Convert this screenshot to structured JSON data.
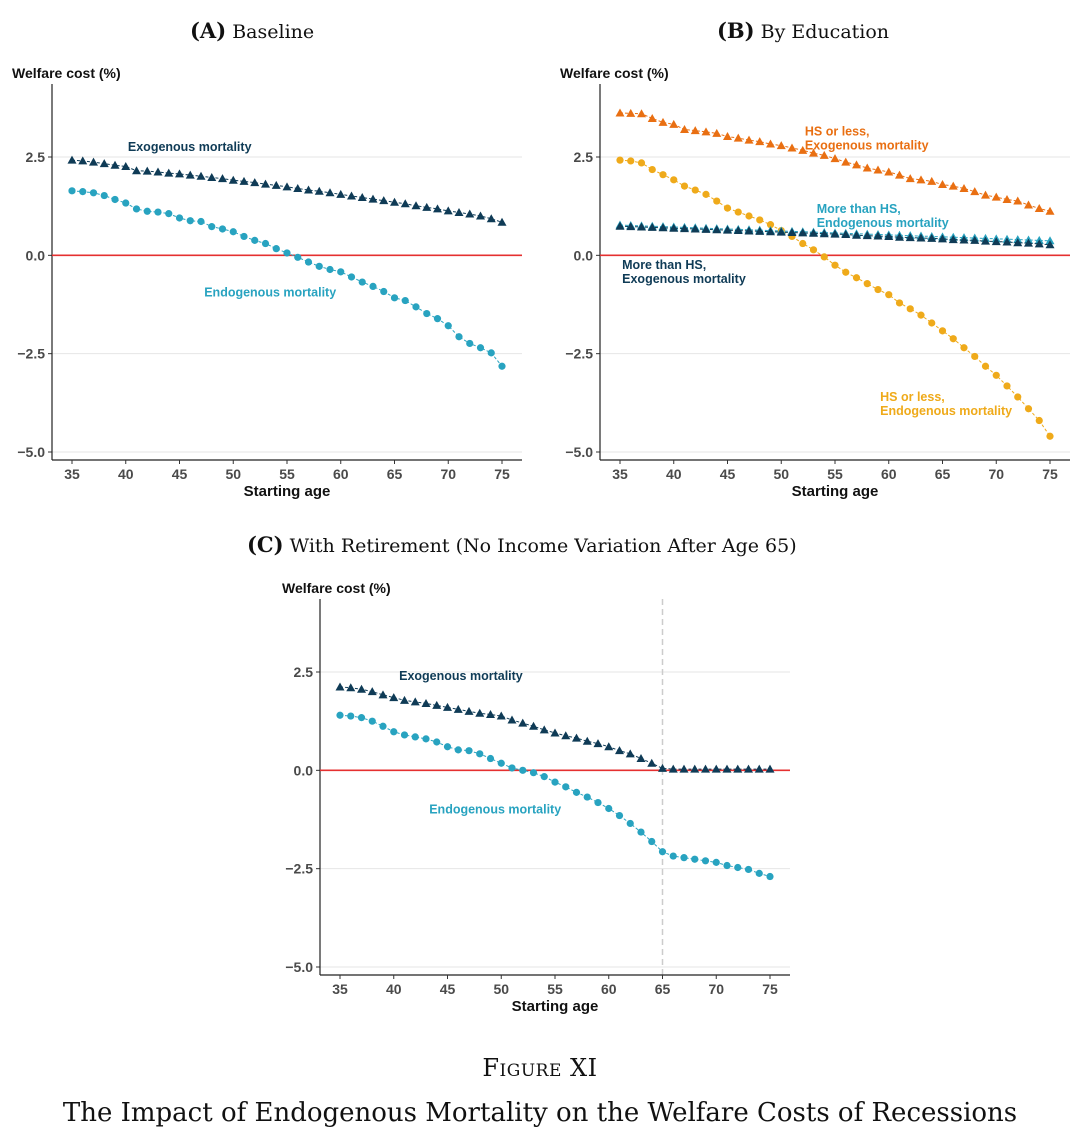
{
  "figure": {
    "number": "Figure XI",
    "caption": "The Impact of Endogenous Mortality on the Welfare Costs of Recessions"
  },
  "colors": {
    "exogenous": "#0f3b56",
    "endogenous": "#28a3c0",
    "hs_exogenous": "#e96f12",
    "hs_endogenous": "#efaa1a",
    "zero_line": "#e53030",
    "grid": "#e6e6e6",
    "retirement_line": "#cccccc"
  },
  "chart_data": [
    {
      "id": "A",
      "type": "scatter",
      "panel_letter": "(A)",
      "panel_title": "Baseline",
      "ylabel": "Welfare cost (%)",
      "xlabel": "Starting age",
      "xlim": [
        35,
        75
      ],
      "ylim": [
        -5,
        4.5
      ],
      "xticks": [
        "35",
        "40",
        "45",
        "50",
        "55",
        "60",
        "65",
        "70",
        "75"
      ],
      "yticks": [
        "2.5",
        "0.0",
        "−2.5",
        "−5.0"
      ],
      "grid": true,
      "x": [
        35,
        36,
        37,
        38,
        39,
        40,
        41,
        42,
        43,
        44,
        45,
        46,
        47,
        48,
        49,
        50,
        51,
        52,
        53,
        54,
        55,
        56,
        57,
        58,
        59,
        60,
        61,
        62,
        63,
        64,
        65,
        66,
        67,
        68,
        69,
        70,
        71,
        72,
        73,
        74,
        75
      ],
      "series": [
        {
          "name": "Exogenous mortality",
          "marker": "triangle",
          "values": [
            2.42,
            2.4,
            2.37,
            2.33,
            2.29,
            2.26,
            2.15,
            2.14,
            2.12,
            2.09,
            2.07,
            2.04,
            2.01,
            1.98,
            1.95,
            1.91,
            1.88,
            1.85,
            1.81,
            1.78,
            1.74,
            1.7,
            1.66,
            1.63,
            1.59,
            1.55,
            1.51,
            1.47,
            1.43,
            1.39,
            1.35,
            1.31,
            1.26,
            1.22,
            1.18,
            1.13,
            1.09,
            1.05,
            1.0,
            0.93,
            0.84
          ]
        },
        {
          "name": "Endogenous mortality",
          "marker": "circle",
          "values": [
            1.64,
            1.62,
            1.59,
            1.52,
            1.42,
            1.33,
            1.18,
            1.12,
            1.1,
            1.06,
            0.95,
            0.88,
            0.86,
            0.73,
            0.67,
            0.6,
            0.48,
            0.38,
            0.3,
            0.17,
            0.06,
            -0.05,
            -0.17,
            -0.28,
            -0.36,
            -0.42,
            -0.55,
            -0.68,
            -0.79,
            -0.92,
            -1.08,
            -1.15,
            -1.31,
            -1.48,
            -1.61,
            -1.79,
            -2.07,
            -2.24,
            -2.35,
            -2.48,
            -2.82
          ]
        }
      ]
    },
    {
      "id": "B",
      "type": "scatter",
      "panel_letter": "(B)",
      "panel_title": "By Education",
      "ylabel": "Welfare cost (%)",
      "xlabel": "Starting age",
      "xlim": [
        35,
        75
      ],
      "ylim": [
        -5,
        4.5
      ],
      "xticks": [
        "35",
        "40",
        "45",
        "50",
        "55",
        "60",
        "65",
        "70",
        "75"
      ],
      "yticks": [
        "2.5",
        "0.0",
        "−2.5",
        "−5.0"
      ],
      "grid": true,
      "x": [
        35,
        36,
        37,
        38,
        39,
        40,
        41,
        42,
        43,
        44,
        45,
        46,
        47,
        48,
        49,
        50,
        51,
        52,
        53,
        54,
        55,
        56,
        57,
        58,
        59,
        60,
        61,
        62,
        63,
        64,
        65,
        66,
        67,
        68,
        69,
        70,
        71,
        72,
        73,
        74,
        75
      ],
      "series": [
        {
          "name": "HS or less, Exogenous mortality",
          "marker": "triangle",
          "values": [
            3.62,
            3.61,
            3.6,
            3.48,
            3.38,
            3.33,
            3.2,
            3.17,
            3.14,
            3.1,
            3.02,
            2.98,
            2.93,
            2.89,
            2.83,
            2.79,
            2.73,
            2.67,
            2.6,
            2.54,
            2.46,
            2.37,
            2.3,
            2.22,
            2.17,
            2.12,
            2.04,
            1.95,
            1.92,
            1.88,
            1.8,
            1.76,
            1.7,
            1.62,
            1.53,
            1.48,
            1.42,
            1.38,
            1.28,
            1.19,
            1.12
          ]
        },
        {
          "name": "HS or less, Endogenous mortality",
          "marker": "circle",
          "values": [
            2.42,
            2.4,
            2.35,
            2.18,
            2.05,
            1.92,
            1.76,
            1.66,
            1.55,
            1.38,
            1.2,
            1.1,
            1.0,
            0.9,
            0.78,
            0.63,
            0.48,
            0.3,
            0.14,
            -0.04,
            -0.25,
            -0.43,
            -0.57,
            -0.72,
            -0.87,
            -1.0,
            -1.21,
            -1.36,
            -1.52,
            -1.72,
            -1.92,
            -2.12,
            -2.35,
            -2.57,
            -2.82,
            -3.05,
            -3.32,
            -3.6,
            -3.9,
            -4.2,
            -4.6
          ]
        },
        {
          "name": "More than HS, Endogenous mortality",
          "marker": "triangle",
          "values": [
            0.77,
            0.76,
            0.75,
            0.74,
            0.73,
            0.72,
            0.71,
            0.7,
            0.69,
            0.68,
            0.67,
            0.66,
            0.65,
            0.64,
            0.63,
            0.62,
            0.61,
            0.6,
            0.59,
            0.58,
            0.57,
            0.56,
            0.55,
            0.54,
            0.53,
            0.52,
            0.51,
            0.5,
            0.49,
            0.48,
            0.47,
            0.46,
            0.45,
            0.44,
            0.43,
            0.42,
            0.41,
            0.4,
            0.39,
            0.38,
            0.37
          ]
        },
        {
          "name": "More than HS, Exogenous mortality",
          "marker": "triangle",
          "values": [
            0.74,
            0.73,
            0.72,
            0.71,
            0.7,
            0.69,
            0.68,
            0.67,
            0.66,
            0.65,
            0.64,
            0.63,
            0.62,
            0.61,
            0.6,
            0.59,
            0.58,
            0.57,
            0.56,
            0.55,
            0.54,
            0.53,
            0.51,
            0.5,
            0.49,
            0.48,
            0.46,
            0.45,
            0.44,
            0.43,
            0.42,
            0.4,
            0.39,
            0.38,
            0.36,
            0.35,
            0.34,
            0.32,
            0.31,
            0.29,
            0.27
          ]
        }
      ]
    },
    {
      "id": "C",
      "type": "scatter",
      "panel_letter": "(C)",
      "panel_title": "With Retirement (No Income Variation After Age 65)",
      "ylabel": "Welfare cost (%)",
      "xlabel": "Starting age",
      "xlim": [
        35,
        75
      ],
      "ylim": [
        -5,
        4.5
      ],
      "xticks": [
        "35",
        "40",
        "45",
        "50",
        "55",
        "60",
        "65",
        "70",
        "75"
      ],
      "yticks": [
        "2.5",
        "0.0",
        "−2.5",
        "−5.0"
      ],
      "grid": true,
      "vline": 65,
      "x": [
        35,
        36,
        37,
        38,
        39,
        40,
        41,
        42,
        43,
        44,
        45,
        46,
        47,
        48,
        49,
        50,
        51,
        52,
        53,
        54,
        55,
        56,
        57,
        58,
        59,
        60,
        61,
        62,
        63,
        64,
        65,
        66,
        67,
        68,
        69,
        70,
        71,
        72,
        73,
        74,
        75
      ],
      "series": [
        {
          "name": "Exogenous mortality",
          "marker": "triangle",
          "values": [
            2.12,
            2.1,
            2.06,
            2.0,
            1.92,
            1.85,
            1.78,
            1.74,
            1.7,
            1.65,
            1.6,
            1.55,
            1.5,
            1.45,
            1.42,
            1.38,
            1.28,
            1.2,
            1.12,
            1.03,
            0.95,
            0.88,
            0.82,
            0.74,
            0.68,
            0.6,
            0.5,
            0.42,
            0.3,
            0.18,
            0.05,
            0.03,
            0.03,
            0.03,
            0.03,
            0.03,
            0.03,
            0.03,
            0.03,
            0.03,
            0.03
          ]
        },
        {
          "name": "Endogenous mortality",
          "marker": "circle",
          "values": [
            1.4,
            1.38,
            1.34,
            1.25,
            1.12,
            0.98,
            0.9,
            0.85,
            0.8,
            0.72,
            0.6,
            0.52,
            0.5,
            0.42,
            0.3,
            0.18,
            0.06,
            0.0,
            -0.06,
            -0.16,
            -0.3,
            -0.42,
            -0.56,
            -0.68,
            -0.82,
            -0.97,
            -1.15,
            -1.35,
            -1.57,
            -1.81,
            -2.07,
            -2.18,
            -2.22,
            -2.26,
            -2.3,
            -2.34,
            -2.42,
            -2.47,
            -2.52,
            -2.62,
            -2.7
          ]
        }
      ]
    }
  ],
  "annotations": {
    "A": [
      {
        "text": "Exogenous mortality",
        "color": "exogenous",
        "x": 40.2,
        "y": 2.65
      },
      {
        "text": "Endogenous mortality",
        "color": "endogenous",
        "x": 47.3,
        "y": -1.05
      }
    ],
    "B": [
      {
        "text": "HS or less,",
        "text2": "Exogenous mortality",
        "color": "hs_exogenous",
        "x": 52.2,
        "y": 3.05
      },
      {
        "text": "More than HS,",
        "text2": "Endogenous mortality",
        "color": "endogenous",
        "x": 53.3,
        "y": 1.08
      },
      {
        "text": "More than HS,",
        "text2": "Exogenous mortality",
        "color": "exogenous",
        "x": 35.2,
        "y": -0.35
      },
      {
        "text": "HS or less,",
        "text2": "Endogenous mortality",
        "color": "hs_endogenous",
        "x": 59.2,
        "y": -3.7
      }
    ],
    "C": [
      {
        "text": "Exogenous mortality",
        "color": "exogenous",
        "x": 40.5,
        "y": 2.3
      },
      {
        "text": "Endogenous mortality",
        "color": "endogenous",
        "x": 43.3,
        "y": -1.1
      }
    ]
  }
}
